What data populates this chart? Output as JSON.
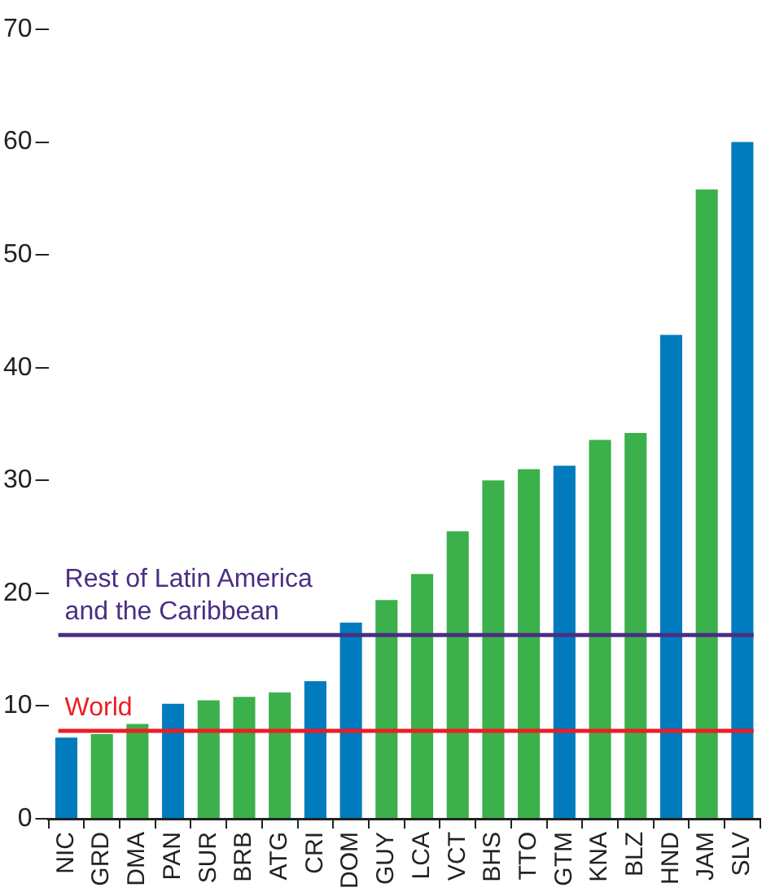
{
  "chart_data": {
    "type": "bar",
    "categories": [
      "NIC",
      "GRD",
      "DMA",
      "PAN",
      "SUR",
      "BRB",
      "ATG",
      "CRI",
      "DOM",
      "GUY",
      "LCA",
      "VCT",
      "BHS",
      "TTO",
      "GTM",
      "KNA",
      "BLZ",
      "HND",
      "JAM",
      "SLV"
    ],
    "values": [
      7.2,
      7.5,
      8.4,
      10.2,
      10.5,
      10.8,
      11.2,
      12.2,
      17.4,
      19.4,
      21.7,
      25.5,
      30.0,
      31.0,
      31.3,
      33.6,
      34.2,
      42.9,
      55.8,
      60.0
    ],
    "colors": [
      "#007bbd",
      "#3cb04b",
      "#3cb04b",
      "#007bbd",
      "#3cb04b",
      "#3cb04b",
      "#3cb04b",
      "#007bbd",
      "#007bbd",
      "#3cb04b",
      "#3cb04b",
      "#3cb04b",
      "#3cb04b",
      "#3cb04b",
      "#007bbd",
      "#3cb04b",
      "#3cb04b",
      "#007bbd",
      "#3cb04b",
      "#007bbd"
    ],
    "ylim": [
      0,
      70
    ],
    "yticks": [
      0,
      10,
      20,
      30,
      40,
      50,
      60,
      70
    ],
    "grid": false,
    "legend": false,
    "ref_lines": [
      {
        "axis": "y",
        "value": 16.3,
        "label": "Rest of Latin America\nand the Caribbean",
        "color": "#4b2e83"
      },
      {
        "axis": "y",
        "value": 7.8,
        "label": "World",
        "color": "#ed1c24"
      }
    ]
  }
}
